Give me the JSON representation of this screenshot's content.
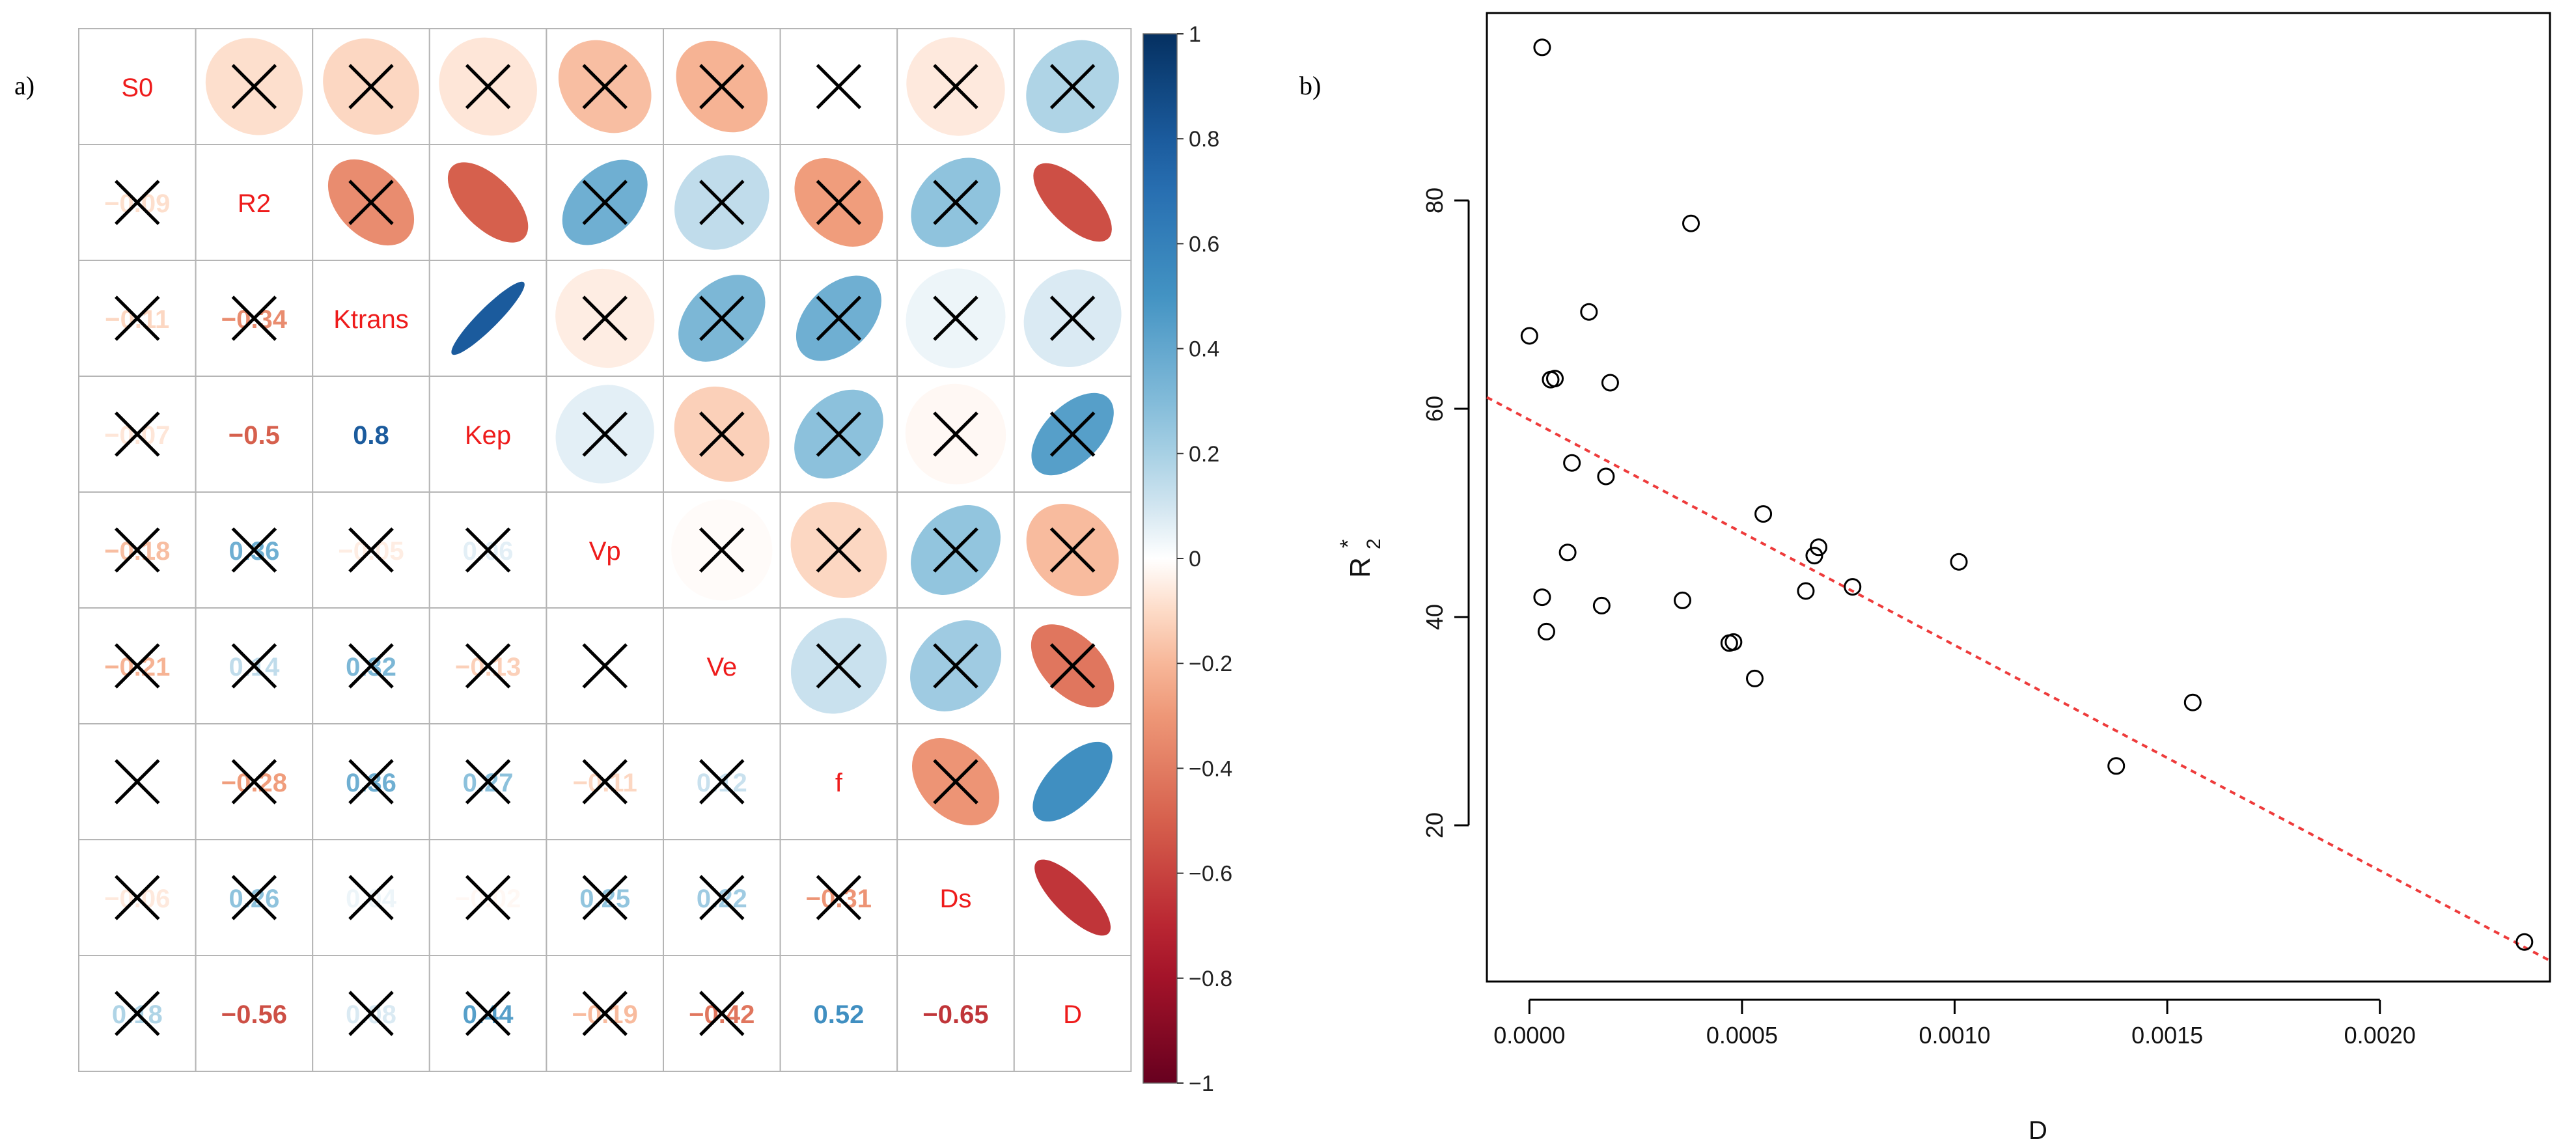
{
  "panels": {
    "a_label": "a)",
    "b_label": "b)"
  },
  "chart_data": [
    {
      "type": "heatmap",
      "subtype": "correlation-matrix",
      "variables": [
        "S0",
        "R2",
        "Ktrans",
        "Kep",
        "Vp",
        "Ve",
        "f",
        "Ds",
        "D"
      ],
      "matrix": [
        [
          1,
          -0.09,
          -0.11,
          -0.07,
          -0.18,
          -0.21,
          0.0,
          -0.06,
          0.18
        ],
        [
          -0.09,
          1,
          -0.34,
          -0.5,
          0.36,
          0.14,
          -0.28,
          0.26,
          -0.56
        ],
        [
          -0.11,
          -0.34,
          1,
          0.8,
          -0.05,
          0.32,
          0.36,
          0.04,
          0.08
        ],
        [
          -0.07,
          -0.5,
          0.8,
          1,
          0.06,
          -0.13,
          0.27,
          -0.02,
          0.44
        ],
        [
          -0.18,
          0.36,
          -0.05,
          0.06,
          1,
          -0.01,
          -0.11,
          0.25,
          -0.19
        ],
        [
          -0.21,
          0.14,
          0.32,
          -0.13,
          -0.01,
          1,
          0.12,
          0.22,
          -0.42
        ],
        [
          0.0,
          -0.28,
          0.36,
          0.27,
          -0.11,
          0.12,
          1,
          -0.31,
          0.52
        ],
        [
          -0.06,
          0.26,
          0.04,
          -0.02,
          0.25,
          0.22,
          -0.31,
          1,
          -0.65
        ],
        [
          0.18,
          -0.56,
          0.08,
          0.44,
          -0.19,
          -0.42,
          0.52,
          -0.65,
          1
        ]
      ],
      "lower_labels": [
        [
          "",
          "",
          "",
          "",
          "",
          "",
          "",
          "",
          ""
        ],
        [
          "−0.09",
          "",
          "",
          "",
          "",
          "",
          "",
          "",
          ""
        ],
        [
          "−0.11",
          "−0.34",
          "",
          "",
          "",
          "",
          "",
          "",
          ""
        ],
        [
          "−0.07",
          "−0.5",
          "0.8",
          "",
          "",
          "",
          "",
          "",
          ""
        ],
        [
          "−0.18",
          "0.36",
          "−0.05",
          "0.06",
          "",
          "",
          "",
          "",
          ""
        ],
        [
          "−0.21",
          "0.14",
          "0.32",
          "−0.13",
          "",
          "",
          "",
          "",
          ""
        ],
        [
          "",
          "−0.28",
          "0.36",
          "0.27",
          "−0.11",
          "0.12",
          "",
          "",
          ""
        ],
        [
          "−0.06",
          "0.26",
          "0.04",
          "−0.02",
          "0.25",
          "0.22",
          "−0.31",
          "",
          ""
        ],
        [
          "0.18",
          "−0.56",
          "0.08",
          "0.44",
          "−0.19",
          "−0.42",
          "0.52",
          "−0.65",
          ""
        ]
      ],
      "crossed": [
        [
          0,
          1,
          1,
          1,
          1,
          1,
          1,
          1,
          1
        ],
        [
          1,
          0,
          1,
          0,
          1,
          1,
          1,
          1,
          0
        ],
        [
          1,
          1,
          0,
          0,
          1,
          1,
          1,
          1,
          1
        ],
        [
          1,
          0,
          0,
          0,
          1,
          1,
          1,
          1,
          1
        ],
        [
          1,
          1,
          1,
          1,
          0,
          1,
          1,
          1,
          1
        ],
        [
          1,
          1,
          1,
          1,
          1,
          0,
          1,
          1,
          1
        ],
        [
          1,
          1,
          1,
          1,
          1,
          1,
          0,
          1,
          0
        ],
        [
          1,
          1,
          1,
          1,
          1,
          1,
          1,
          0,
          0
        ],
        [
          1,
          0,
          1,
          1,
          1,
          1,
          0,
          0,
          0
        ]
      ],
      "colorbar": {
        "range": [
          -1,
          1
        ],
        "ticks": [
          1,
          0.8,
          0.6,
          0.4,
          0.2,
          0,
          -0.2,
          -0.4,
          -0.6,
          -0.8,
          -1
        ],
        "tick_labels": [
          "1",
          "0.8",
          "0.6",
          "0.4",
          "0.2",
          "0",
          "−0.2",
          "−0.4",
          "−0.6",
          "−0.8",
          "−1"
        ]
      },
      "colors": {
        "negative": "#67001F",
        "neutral": "#FFFFFF",
        "positive": "#053061",
        "diag_label": "#EE1B1B",
        "cross": "#000000"
      }
    },
    {
      "type": "scatter",
      "title": "",
      "xlabel": "D",
      "ylabel": "R2*",
      "ylabel_main": "R",
      "ylabel_sup": "*",
      "ylabel_sub": "2",
      "xlim": [
        -0.0001,
        0.0024
      ],
      "ylim": [
        5,
        98
      ],
      "x_ticks": [
        0.0,
        0.0005,
        0.001,
        0.0015,
        0.002
      ],
      "x_tick_labels": [
        "0.0000",
        "0.0005",
        "0.0010",
        "0.0015",
        "0.0020"
      ],
      "y_ticks": [
        20,
        40,
        60,
        80
      ],
      "y_tick_labels": [
        "20",
        "40",
        "60",
        "80"
      ],
      "points": {
        "x": [
          3e-05,
          0.0,
          5e-05,
          6e-05,
          0.00014,
          0.00038,
          0.00019,
          0.0001,
          0.00018,
          9e-05,
          3e-05,
          4e-05,
          0.00017,
          0.00036,
          0.00055,
          0.00068,
          0.00067,
          0.00065,
          0.00076,
          0.00101,
          0.00047,
          0.00048,
          0.00053,
          0.00156,
          0.00138,
          0.00234
        ],
        "y": [
          94.7,
          67.0,
          62.8,
          62.9,
          69.3,
          77.8,
          62.5,
          54.8,
          53.5,
          46.2,
          41.9,
          38.6,
          41.1,
          41.6,
          49.9,
          46.7,
          45.9,
          42.5,
          42.9,
          45.3,
          37.5,
          37.6,
          34.1,
          31.8,
          25.7,
          8.8
        ]
      },
      "regression_line": {
        "x": [
          -0.0001,
          0.0024
        ],
        "y": [
          61.1,
          7.0
        ],
        "style": "dashed",
        "color": "#EE3B3B"
      }
    }
  ]
}
